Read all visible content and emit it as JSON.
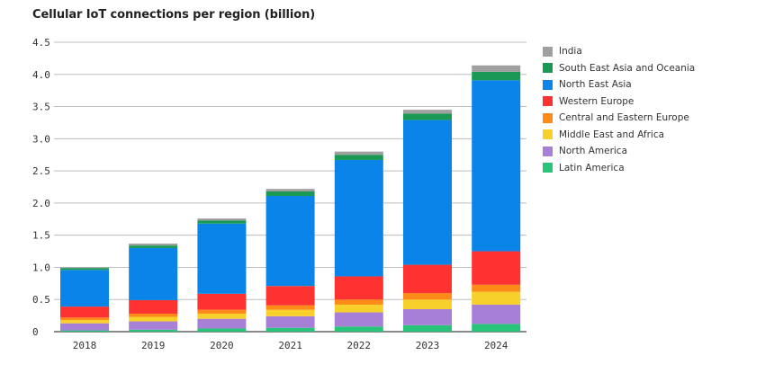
{
  "chart_data": {
    "type": "bar",
    "stacked": true,
    "title": "Cellular IoT connections per region (billion)",
    "xlabel": "",
    "ylabel": "",
    "ylim": [
      0,
      4.5
    ],
    "yticks": [
      "0",
      "0.5",
      "1.0",
      "1.5",
      "2.0",
      "2.5",
      "3.0",
      "3.5",
      "4.0",
      "4.5"
    ],
    "grid": true,
    "legend_position": "right",
    "categories": [
      "2018",
      "2019",
      "2020",
      "2021",
      "2022",
      "2023",
      "2024"
    ],
    "series": [
      {
        "name": "Latin America",
        "color": "#27c47a",
        "values": [
          0.02,
          0.03,
          0.05,
          0.06,
          0.08,
          0.1,
          0.12
        ]
      },
      {
        "name": "North America",
        "color": "#a87fd6",
        "values": [
          0.11,
          0.13,
          0.15,
          0.18,
          0.22,
          0.25,
          0.3
        ]
      },
      {
        "name": "Middle East and Africa",
        "color": "#f7d02c",
        "values": [
          0.05,
          0.07,
          0.08,
          0.1,
          0.12,
          0.15,
          0.2
        ]
      },
      {
        "name": "Central and Eastern Europe",
        "color": "#ff8a18",
        "values": [
          0.04,
          0.05,
          0.06,
          0.07,
          0.08,
          0.1,
          0.11
        ]
      },
      {
        "name": "Western Europe",
        "color": "#ff3232",
        "values": [
          0.17,
          0.21,
          0.25,
          0.3,
          0.36,
          0.44,
          0.52
        ]
      },
      {
        "name": "North East Asia",
        "color": "#0a84e8",
        "values": [
          0.57,
          0.81,
          1.09,
          1.4,
          1.81,
          2.25,
          2.66
        ]
      },
      {
        "name": "South East Asia and Oceania",
        "color": "#1a9955",
        "values": [
          0.03,
          0.04,
          0.05,
          0.07,
          0.08,
          0.1,
          0.13
        ]
      },
      {
        "name": "India",
        "color": "#a0a0a0",
        "values": [
          0.01,
          0.03,
          0.03,
          0.04,
          0.05,
          0.06,
          0.1
        ]
      }
    ]
  },
  "legend_order": [
    7,
    6,
    5,
    4,
    3,
    2,
    1,
    0
  ]
}
